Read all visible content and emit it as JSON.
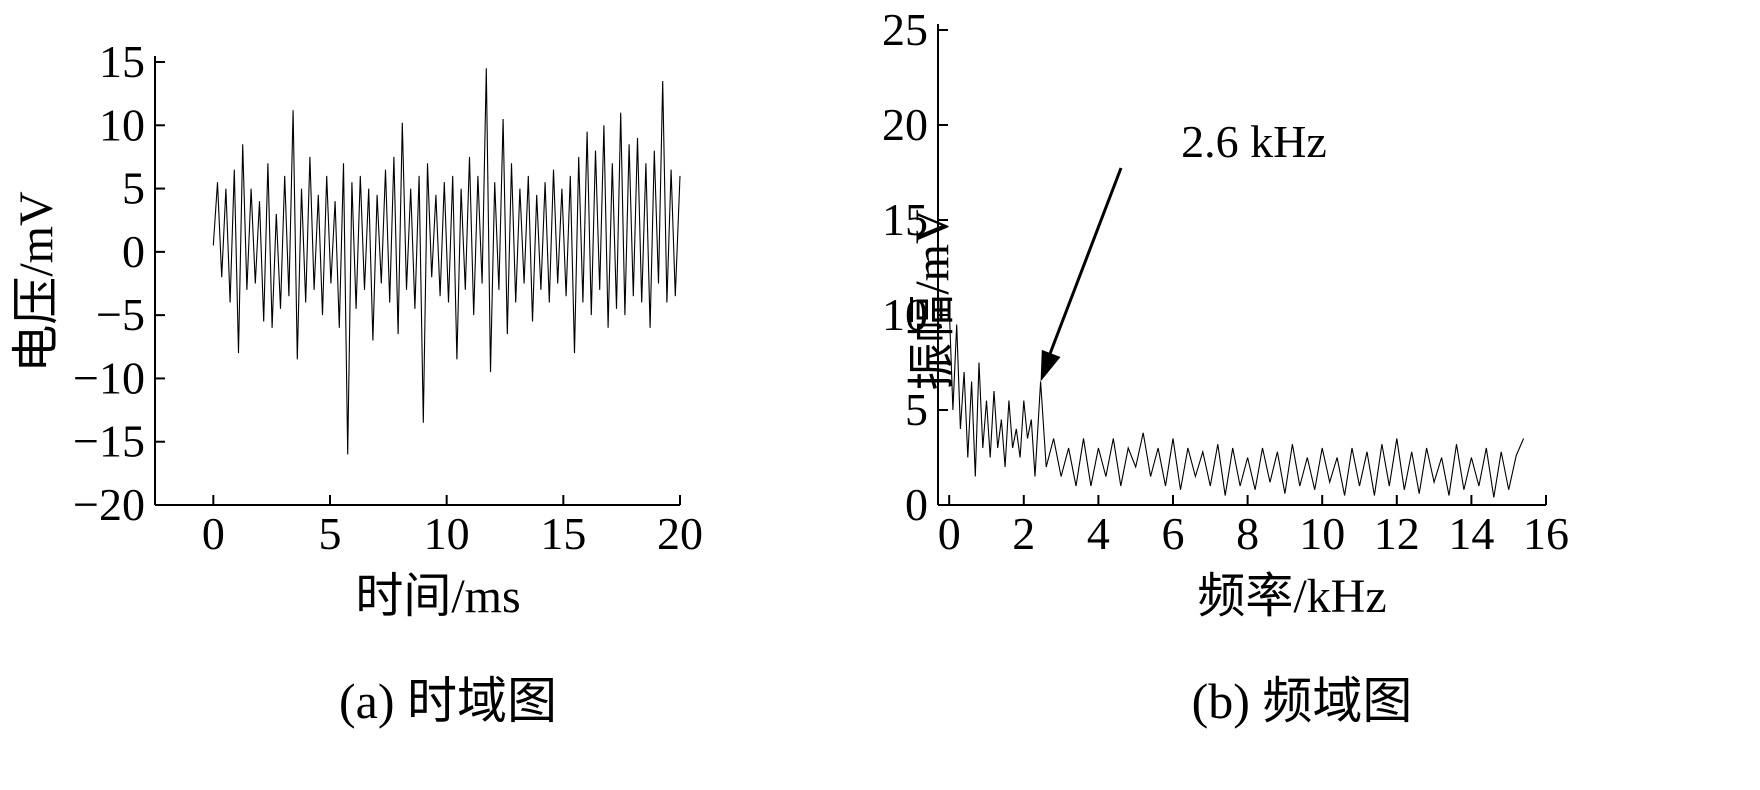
{
  "chart_data": [
    {
      "type": "line",
      "title": "",
      "caption": "(a) 时域图",
      "xlabel": "时间/ms",
      "ylabel": "电压/mV",
      "xlim": [
        -2.5,
        20
      ],
      "ylim": [
        -20,
        15
      ],
      "xticks": [
        0,
        5,
        10,
        15,
        20
      ],
      "yticks": [
        -20,
        -15,
        -10,
        -5,
        0,
        5,
        10,
        15
      ],
      "xtick_labels": [
        "0",
        "5",
        "10",
        "15",
        "20"
      ],
      "ytick_labels": [
        "−20",
        "−15",
        "−10",
        "−5",
        "0",
        "5",
        "10",
        "15"
      ],
      "grid": false,
      "series": [
        {
          "x": [
            0,
            0.18,
            0.36,
            0.54,
            0.72,
            0.9,
            1.08,
            1.26,
            1.44,
            1.62,
            1.8,
            1.98,
            2.16,
            2.34,
            2.52,
            2.7,
            2.88,
            3.06,
            3.24,
            3.42,
            3.6,
            3.78,
            3.96,
            4.14,
            4.32,
            4.5,
            4.68,
            4.86,
            5.04,
            5.22,
            5.4,
            5.58,
            5.76,
            5.94,
            6.12,
            6.3,
            6.48,
            6.66,
            6.84,
            7.02,
            7.2,
            7.38,
            7.56,
            7.74,
            7.92,
            8.1,
            8.28,
            8.46,
            8.64,
            8.82,
            9.0,
            9.18,
            9.36,
            9.54,
            9.72,
            9.9,
            10.08,
            10.26,
            10.44,
            10.62,
            10.8,
            10.98,
            11.16,
            11.34,
            11.52,
            11.7,
            11.88,
            12.06,
            12.24,
            12.42,
            12.6,
            12.78,
            12.96,
            13.14,
            13.32,
            13.5,
            13.68,
            13.86,
            14.04,
            14.22,
            14.4,
            14.58,
            14.76,
            14.94,
            15.12,
            15.3,
            15.48,
            15.66,
            15.84,
            16.02,
            16.2,
            16.38,
            16.56,
            16.74,
            16.92,
            17.1,
            17.28,
            17.46,
            17.64,
            17.82,
            18.0,
            18.18,
            18.36,
            18.54,
            18.72,
            18.9,
            19.08,
            19.26,
            19.44,
            19.62,
            19.8,
            20.0
          ],
          "y": [
            0.5,
            5.5,
            -2.0,
            5.0,
            -4.0,
            6.5,
            -8.0,
            8.5,
            -3.0,
            5.0,
            -2.5,
            4.0,
            -5.5,
            7.0,
            -6.0,
            3.0,
            -4.5,
            6.0,
            -3.5,
            11.2,
            -8.5,
            5.0,
            -4.0,
            7.5,
            -3.0,
            4.5,
            -5.0,
            6.0,
            -2.5,
            4.0,
            -6.0,
            7.0,
            -16.0,
            5.5,
            -4.5,
            6.0,
            -3.0,
            5.0,
            -7.0,
            4.5,
            -2.5,
            6.5,
            -4.0,
            7.5,
            -6.5,
            10.2,
            -3.0,
            5.0,
            -4.5,
            6.0,
            -13.5,
            7.0,
            -2.0,
            4.5,
            -3.5,
            5.5,
            -4.0,
            6.0,
            -8.5,
            5.0,
            -3.0,
            7.5,
            -5.0,
            6.0,
            -2.5,
            14.5,
            -9.5,
            5.5,
            -3.0,
            10.5,
            -6.5,
            7.0,
            -4.0,
            5.0,
            -2.5,
            6.0,
            -5.5,
            4.5,
            -3.0,
            5.5,
            -4.0,
            6.5,
            -2.5,
            5.0,
            -3.5,
            6.0,
            -8.0,
            7.5,
            -4.0,
            9.5,
            -5.0,
            8.0,
            -3.0,
            10.0,
            -6.0,
            7.0,
            -4.5,
            11.0,
            -5.0,
            8.5,
            -3.5,
            9.0,
            -4.0,
            7.0,
            -6.0,
            8.0,
            -2.5,
            13.5,
            -4.0,
            6.5,
            -3.5,
            6.0
          ]
        }
      ]
    },
    {
      "type": "line",
      "title": "",
      "caption": "(b) 频域图",
      "xlabel": "频率/kHz",
      "ylabel": "振幅/mV",
      "xlim": [
        -0.3,
        16
      ],
      "ylim": [
        0,
        25
      ],
      "xticks": [
        0,
        2,
        4,
        6,
        8,
        10,
        12,
        14,
        16
      ],
      "yticks": [
        0,
        5,
        10,
        15,
        20,
        25
      ],
      "xtick_labels": [
        "0",
        "2",
        "4",
        "6",
        "8",
        "10",
        "12",
        "14",
        "16"
      ],
      "ytick_labels": [
        "0",
        "5",
        "10",
        "15",
        "20",
        "25"
      ],
      "grid": false,
      "annotation": {
        "text": "2.6 kHz",
        "x": 2.45,
        "y": 6.5
      },
      "series": [
        {
          "x": [
            0.0,
            0.1,
            0.2,
            0.3,
            0.4,
            0.5,
            0.6,
            0.7,
            0.8,
            0.9,
            1.0,
            1.1,
            1.2,
            1.3,
            1.4,
            1.5,
            1.6,
            1.7,
            1.8,
            1.9,
            2.0,
            2.1,
            2.2,
            2.3,
            2.45,
            2.6,
            2.8,
            3.0,
            3.2,
            3.4,
            3.6,
            3.8,
            4.0,
            4.2,
            4.4,
            4.6,
            4.8,
            5.0,
            5.2,
            5.4,
            5.6,
            5.8,
            6.0,
            6.2,
            6.4,
            6.6,
            6.8,
            7.0,
            7.2,
            7.4,
            7.6,
            7.8,
            8.0,
            8.2,
            8.4,
            8.6,
            8.8,
            9.0,
            9.2,
            9.4,
            9.6,
            9.8,
            10.0,
            10.2,
            10.4,
            10.6,
            10.8,
            11.0,
            11.2,
            11.4,
            11.6,
            11.8,
            12.0,
            12.2,
            12.4,
            12.6,
            12.8,
            13.0,
            13.2,
            13.4,
            13.6,
            13.8,
            14.0,
            14.2,
            14.4,
            14.6,
            14.8,
            15.0,
            15.2,
            15.4
          ],
          "y": [
            10.5,
            5.0,
            9.5,
            4.0,
            7.0,
            2.5,
            6.5,
            1.5,
            7.5,
            3.0,
            5.5,
            2.5,
            6.0,
            3.0,
            4.5,
            2.0,
            5.5,
            3.0,
            4.0,
            2.5,
            5.5,
            3.5,
            4.5,
            1.5,
            6.5,
            2.0,
            3.5,
            1.5,
            3.0,
            1.0,
            3.5,
            1.0,
            3.0,
            1.5,
            3.5,
            1.0,
            3.0,
            2.0,
            3.8,
            1.5,
            3.0,
            1.0,
            3.5,
            0.8,
            3.0,
            1.5,
            2.8,
            1.0,
            3.2,
            0.5,
            3.0,
            1.0,
            2.5,
            0.8,
            3.0,
            1.2,
            2.8,
            0.6,
            3.2,
            1.0,
            2.5,
            0.8,
            3.0,
            1.2,
            2.5,
            0.5,
            3.0,
            1.0,
            2.8,
            0.5,
            3.2,
            1.0,
            3.5,
            0.8,
            2.8,
            0.6,
            3.0,
            1.2,
            2.5,
            0.5,
            3.2,
            0.8,
            2.5,
            1.0,
            3.0,
            0.4,
            2.8,
            0.8,
            2.6,
            3.5
          ]
        }
      ]
    }
  ]
}
